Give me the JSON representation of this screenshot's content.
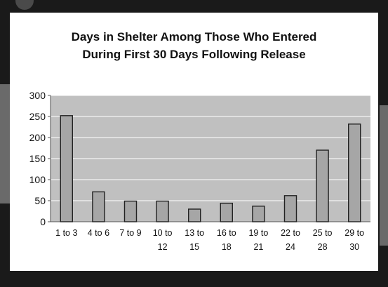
{
  "colors": {
    "background": "#1a1a1a",
    "slide": "#ffffff",
    "plot_area": "#c0c0c0",
    "bar_fill": "#a6a6a6",
    "bar_stroke": "#222222",
    "gridline": "#ffffff",
    "text": "#111111"
  },
  "chart_data": {
    "type": "bar",
    "title_lines": [
      "Days in Shelter Among Those Who Entered",
      "During First 30 Days Following Release"
    ],
    "xlabel": "",
    "ylabel": "",
    "categories": [
      [
        "1 to 3"
      ],
      [
        "4 to 6"
      ],
      [
        "7 to 9"
      ],
      [
        "10 to",
        "12"
      ],
      [
        "13 to",
        "15"
      ],
      [
        "16 to",
        "18"
      ],
      [
        "19 to",
        "21"
      ],
      [
        "22 to",
        "24"
      ],
      [
        "25 to",
        "28"
      ],
      [
        "29 to",
        "30"
      ]
    ],
    "values": [
      252,
      71,
      49,
      49,
      30,
      44,
      37,
      62,
      170,
      232
    ],
    "ylim": [
      0,
      300
    ],
    "yticks": [
      "0",
      "50",
      "100",
      "150",
      "200",
      "250",
      "300"
    ],
    "grid": true,
    "legend": "none"
  }
}
